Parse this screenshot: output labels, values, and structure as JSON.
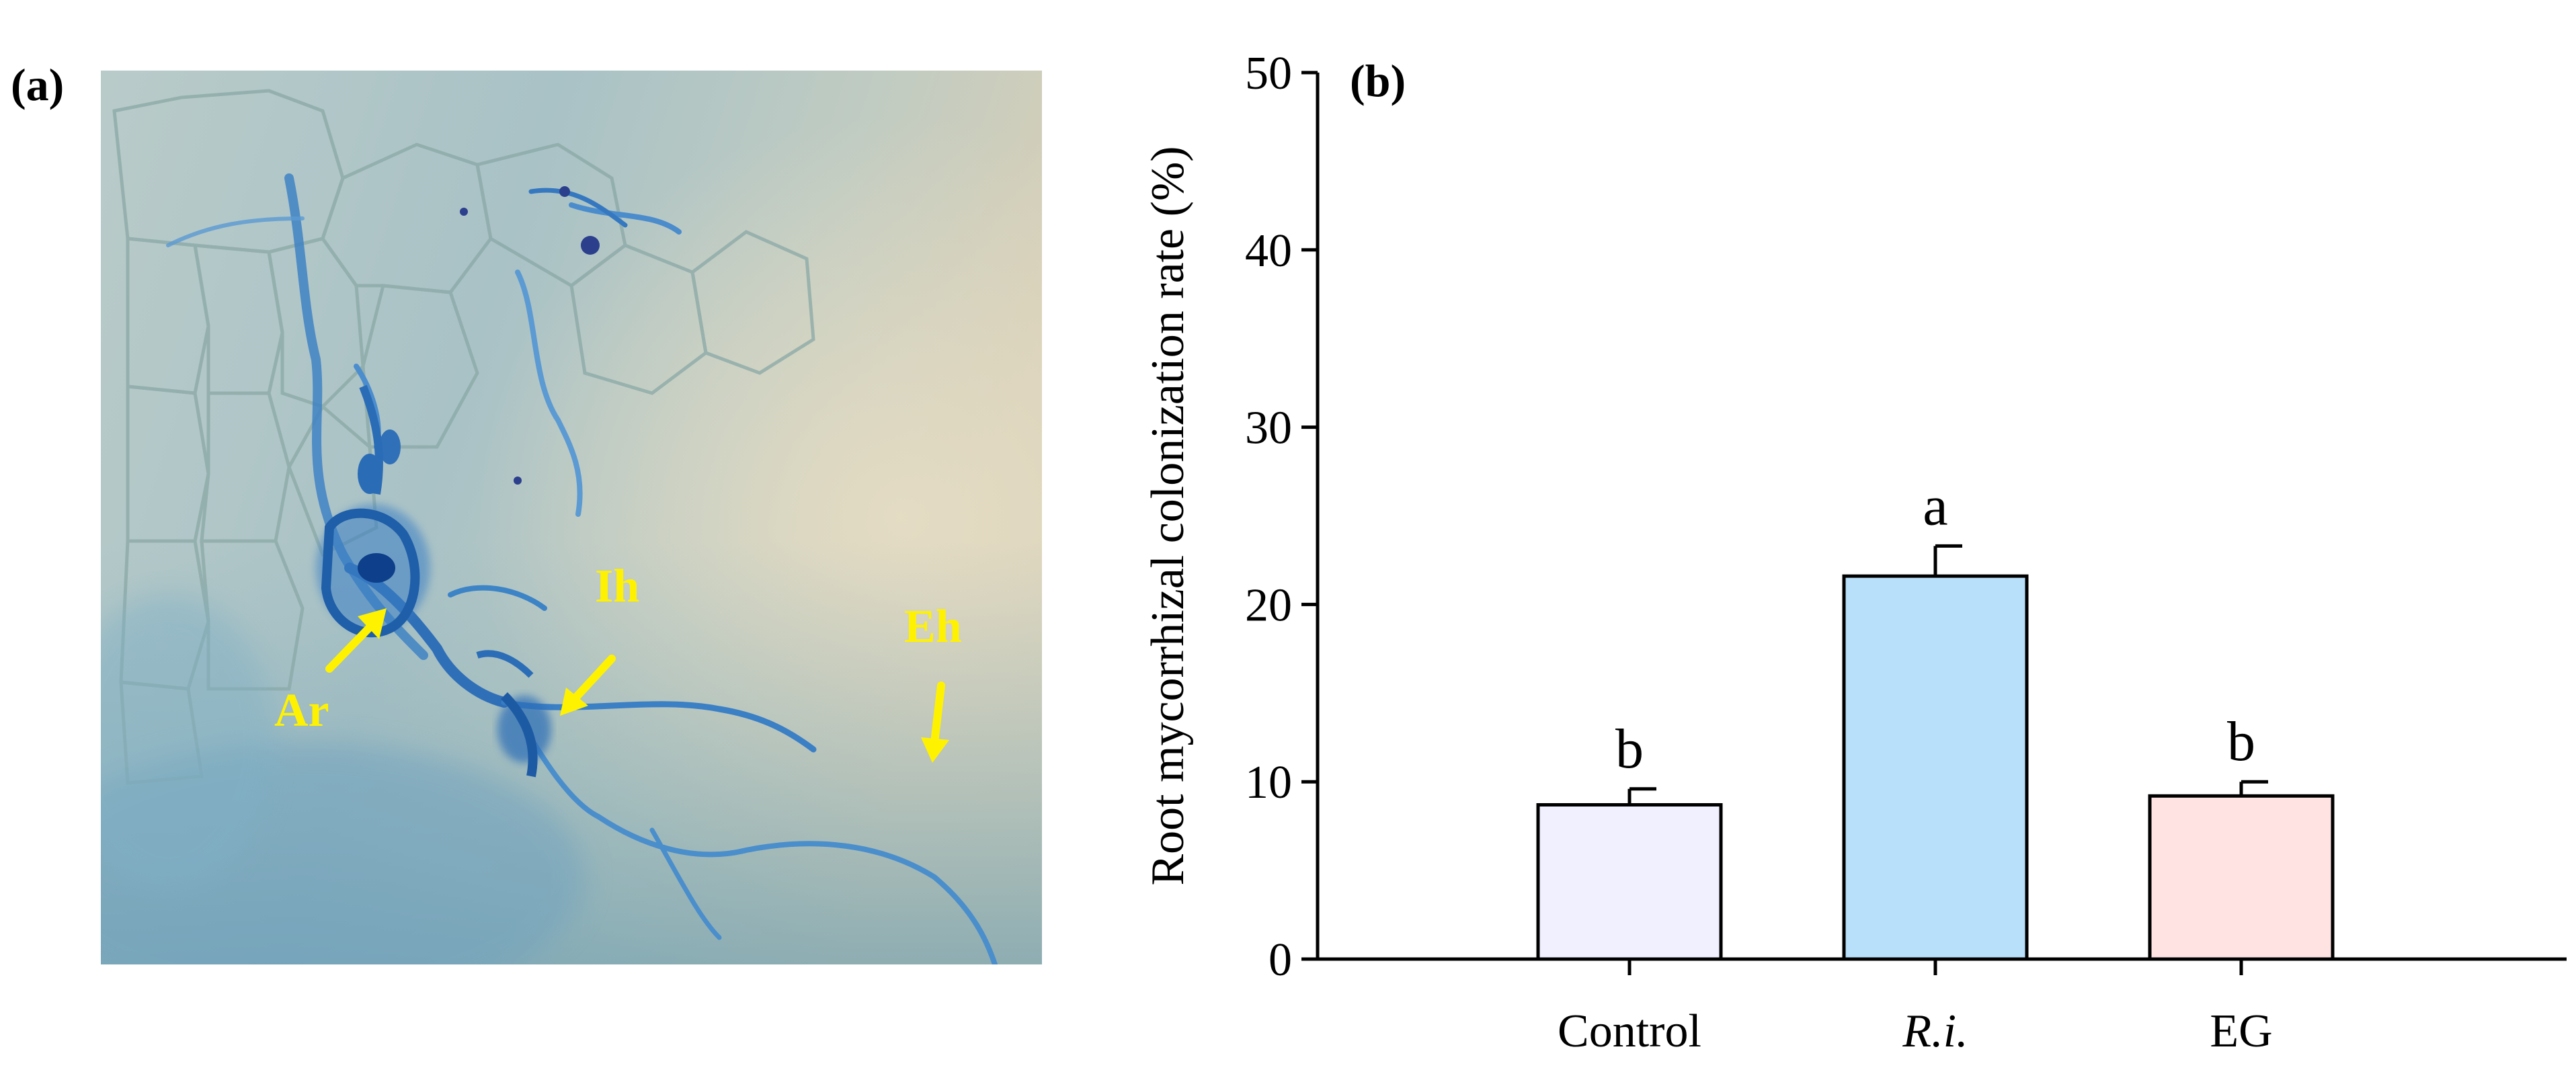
{
  "panels": {
    "a_label": "(a)",
    "b_label": "(b)"
  },
  "micrograph": {
    "annotations": [
      {
        "text": "Ar"
      },
      {
        "text": "Ih"
      },
      {
        "text": "Eh"
      }
    ],
    "arrow_color": "#fff200"
  },
  "chart_data": {
    "type": "bar",
    "title": "",
    "ylabel": "Root mycorrhizal colonization rate (%)",
    "xlabel": "",
    "ylim": [
      0,
      50
    ],
    "yticks": [
      "0",
      "10",
      "20",
      "30",
      "40",
      "50"
    ],
    "categories": [
      "Control",
      "R.i.",
      "EG"
    ],
    "category_italic": [
      false,
      true,
      false
    ],
    "values": [
      8.7,
      21.6,
      9.2
    ],
    "errors": [
      0.9,
      1.7,
      0.8
    ],
    "significance": [
      "b",
      "a",
      "b"
    ],
    "colors": [
      "#f0f0ff",
      "#b8e0fa",
      "#ffe2e2"
    ],
    "grid": false,
    "legend": "none"
  }
}
